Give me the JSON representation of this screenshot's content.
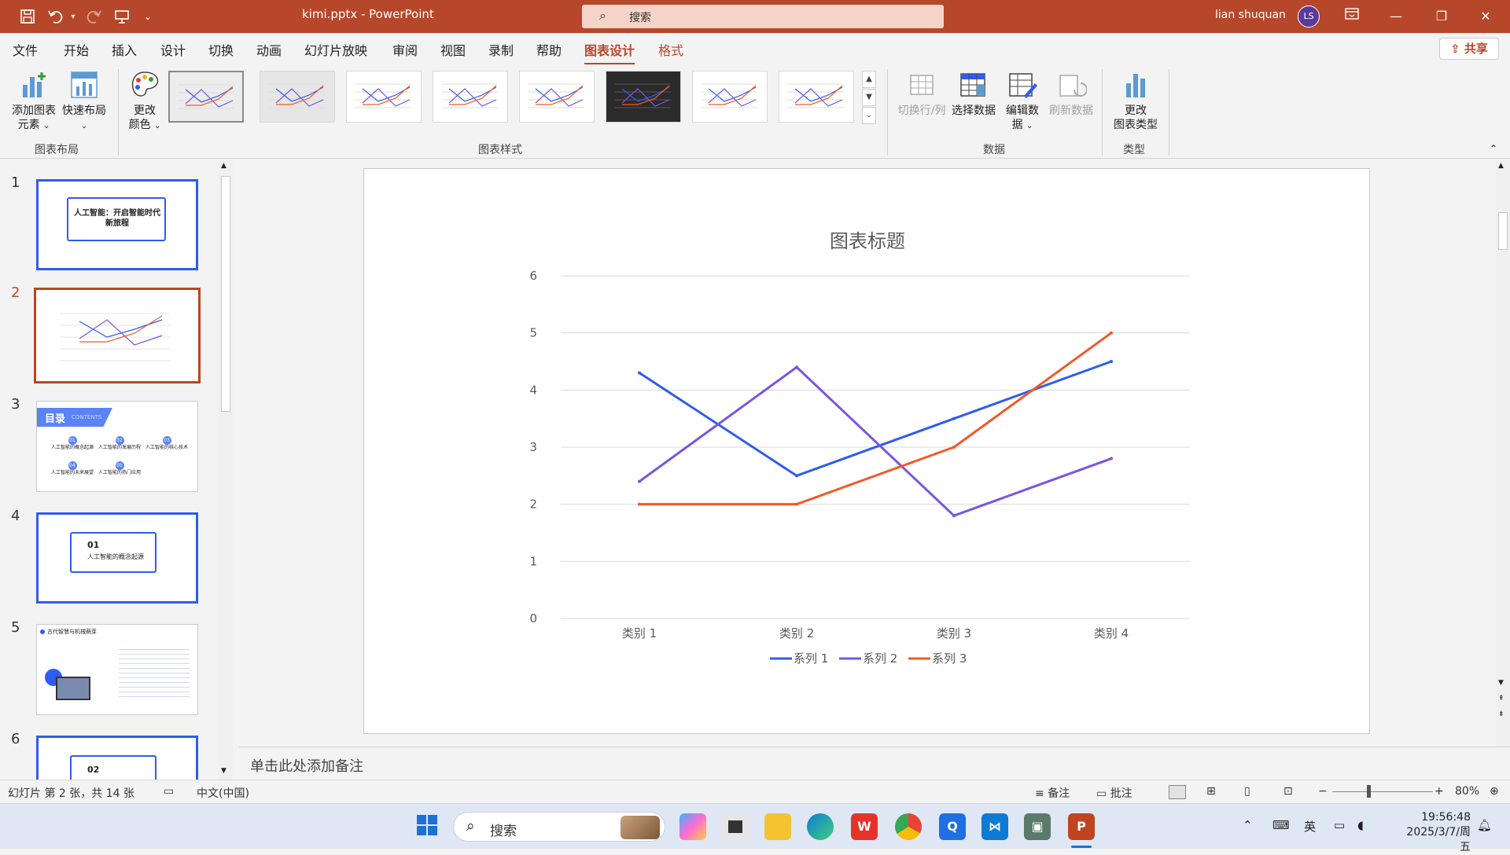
{
  "app": {
    "doc_title": "kimi.pptx  -  PowerPoint",
    "search_placeholder": "搜索",
    "user_name": "lian shuquan",
    "user_initials": "LS"
  },
  "menu": {
    "tabs": [
      "文件",
      "开始",
      "插入",
      "设计",
      "切换",
      "动画",
      "幻灯片放映",
      "审阅",
      "视图",
      "录制",
      "帮助",
      "图表设计",
      "格式"
    ],
    "active_tab": "图表设计",
    "share_label": "共享"
  },
  "ribbon": {
    "add_chart_element": "添加图表元素",
    "add_chart_element_l1": "添加图表",
    "add_chart_element_l2": "元素",
    "quick_layout": "快速布局",
    "change_colors_l1": "更改",
    "change_colors_l2": "颜色",
    "group_chart_layouts": "图表布局",
    "group_chart_styles": "图表样式",
    "switch_row_col": "切换行/列",
    "select_data": "选择数据",
    "edit_data_l1": "编辑数",
    "edit_data_l2": "据",
    "refresh_data": "刷新数据",
    "group_data": "数据",
    "change_chart_type_l1": "更改",
    "change_chart_type_l2": "图表类型",
    "group_type": "类型"
  },
  "slides": {
    "numbers": [
      "1",
      "2",
      "3",
      "4",
      "5",
      "6"
    ],
    "s1_title_l1": "人工智能：开启智能时代",
    "s1_title_l2": "新旅程",
    "s3_toc": "目录",
    "s3_contents": "CONTENTS",
    "s3_items": [
      "人工智能的概念起源",
      "人工智能的发展历程",
      "人工智能的核心技术",
      "人工智能的未来展望",
      "人工智能的热门应用"
    ],
    "s3_nums": [
      "01",
      "02",
      "03",
      "04",
      "05"
    ],
    "s4_num": "01",
    "s4_title": "人工智能的概念起源",
    "s5_title": "古代智慧与机械萌芽",
    "s6_num": "02"
  },
  "chart_data": {
    "type": "line",
    "title": "图表标题",
    "categories": [
      "类别 1",
      "类别 2",
      "类别 3",
      "类别 4"
    ],
    "series": [
      {
        "name": "系列 1",
        "values": [
          4.3,
          2.5,
          3.5,
          4.5
        ],
        "color": "#2f5cf0"
      },
      {
        "name": "系列 2",
        "values": [
          2.4,
          4.4,
          1.8,
          2.8
        ],
        "color": "#7b55e0"
      },
      {
        "name": "系列 3",
        "values": [
          2,
          2,
          3,
          5
        ],
        "color": "#f05a28"
      }
    ],
    "ylim": [
      0,
      6
    ],
    "yticks": [
      "0",
      "1",
      "2",
      "3",
      "4",
      "5",
      "6"
    ],
    "grid": true,
    "legend": "bottom"
  },
  "notes_placeholder": "单击此处添加备注",
  "status": {
    "slide_info": "幻灯片 第 2 张，共 14 张",
    "language": "中文(中国)",
    "notes_btn": "备注",
    "comments_btn": "批注",
    "zoom": "80%"
  },
  "taskbar": {
    "search_label": "搜索",
    "ime": "英",
    "time": "19:56:48",
    "date": "2025/3/7/周五"
  },
  "colors": {
    "accent": "#b7472a",
    "series1": "#2f5cf0",
    "series2": "#7b55e0",
    "series3": "#f05a28"
  }
}
